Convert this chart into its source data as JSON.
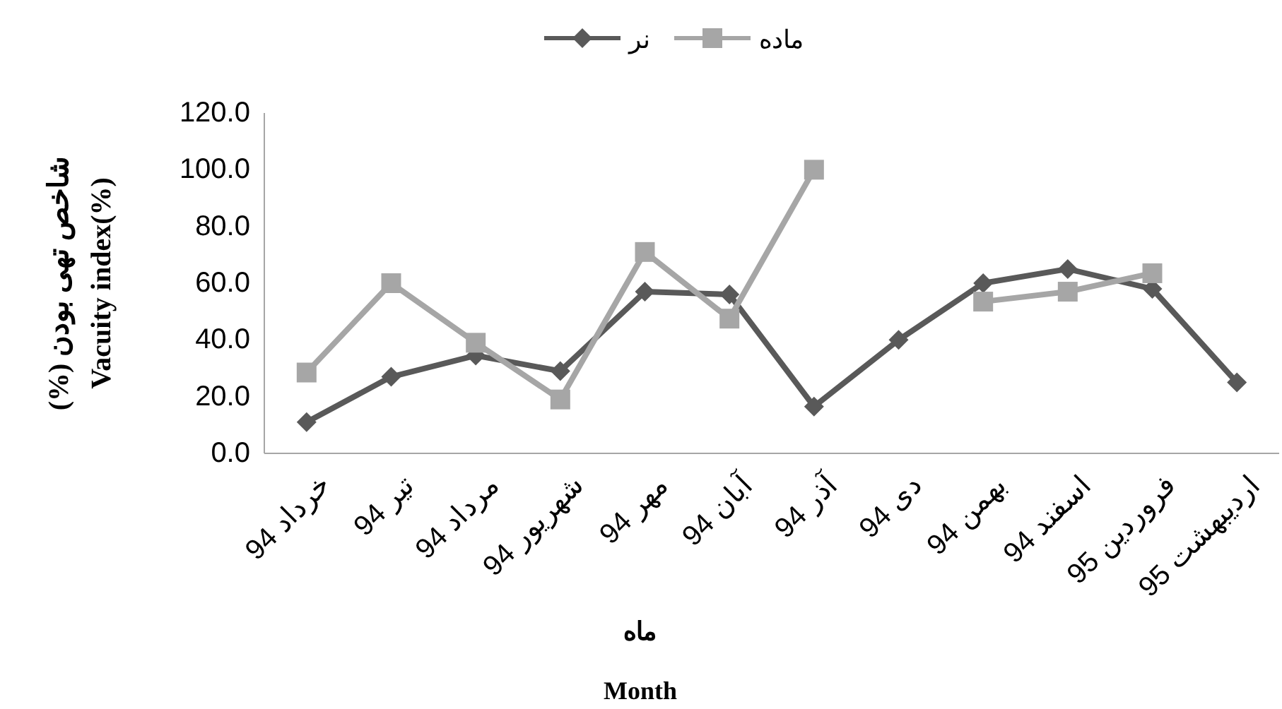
{
  "chart_data": {
    "type": "line",
    "categories": [
      "خرداد 94",
      "تیر 94",
      "مرداد 94",
      "شهریور 94",
      "مهر 94",
      "آبان 94",
      "آذر 94",
      "دی 94",
      "بهمن 94",
      "اسفند 94",
      "فروردین 95",
      "اردیبهشت 95"
    ],
    "series": [
      {
        "name": "نر",
        "color": "#595959",
        "marker": "diamond",
        "values": [
          11,
          27,
          34.5,
          29,
          57,
          56,
          16.5,
          40,
          60,
          65,
          58,
          25
        ]
      },
      {
        "name": "ماده",
        "color": "#a6a6a6",
        "marker": "square",
        "values": [
          28.5,
          60,
          39,
          19,
          71,
          47.5,
          100,
          null,
          53.5,
          57,
          63.5,
          null
        ]
      }
    ],
    "ylim": [
      0,
      120
    ],
    "yticks": [
      {
        "value": 0,
        "label": "0.0"
      },
      {
        "value": 20,
        "label": "20.0"
      },
      {
        "value": 40,
        "label": "40.0"
      },
      {
        "value": 60,
        "label": "60.0"
      },
      {
        "value": 80,
        "label": "80.0"
      },
      {
        "value": 100,
        "label": "100.0"
      },
      {
        "value": 120,
        "label": "120.0"
      }
    ],
    "ylabel": "شاخص تهی بودن (%)\nVacuity index(%)",
    "xlabel": "ماه\nMonth",
    "legend": "top"
  }
}
